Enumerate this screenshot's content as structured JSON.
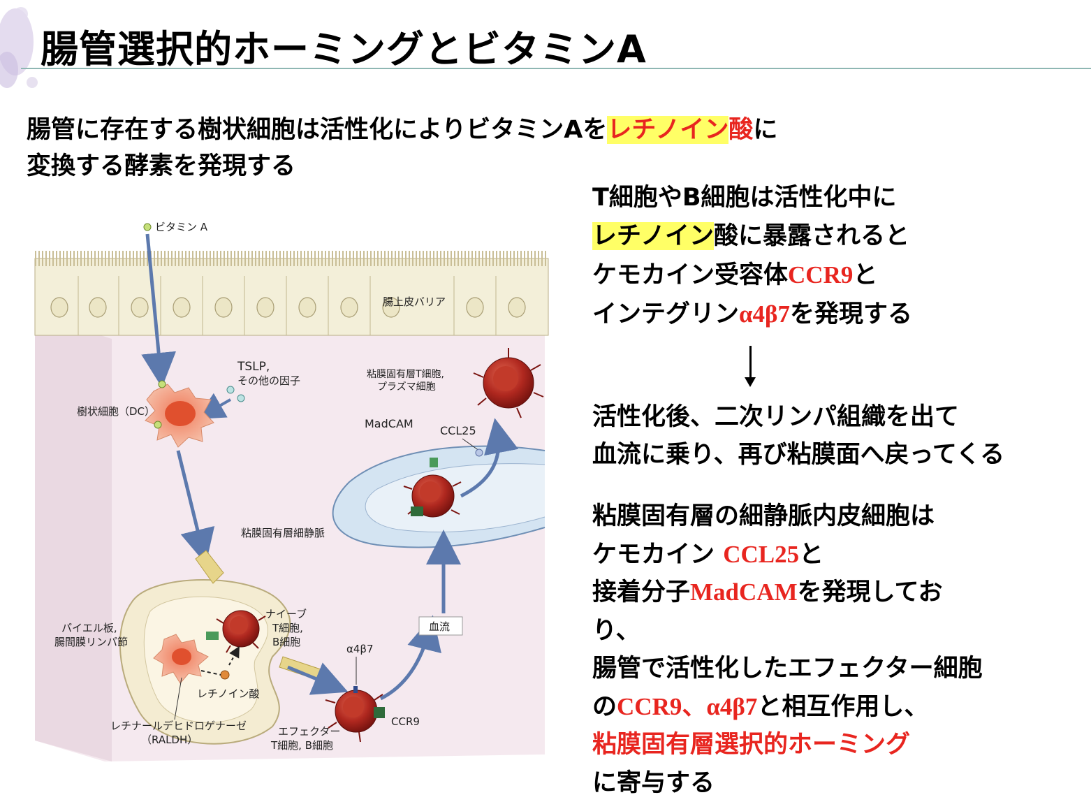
{
  "title": "腸管選択的ホーミングとビタミンA",
  "intro": {
    "line1_a": "腸管に存在する樹状細胞は活性化によりビタミンAを",
    "line1_hl": "レチノイン",
    "line1_red": "酸",
    "line1_b": "に",
    "line2": "変換する酵素を発現する"
  },
  "right_text": {
    "p1": {
      "l1": "T細胞やB細胞は活性化中に",
      "l2_hl": "レチノイン",
      "l2_rest": "酸に暴露されると",
      "l3_a": "ケモカイン受容体",
      "l3_red": "CCR9",
      "l3_b": "と",
      "l4_a": "インテグリン",
      "l4_red": "α4β7",
      "l4_b": "を発現する"
    },
    "p2": {
      "l1": "活性化後、二次リンパ組織を出て",
      "l2": "血流に乗り、再び粘膜面へ戻ってくる"
    },
    "p3": {
      "l1": "粘膜固有層の細静脈内皮細胞は",
      "l2_a": "ケモカイン ",
      "l2_red": "CCL25",
      "l2_b": "と",
      "l3_a": "接着分子",
      "l3_red": "MadCAM",
      "l3_b": "を発現してお",
      "l4": "り、",
      "l5": "腸管で活性化したエフェクター細胞",
      "l6_a": "の",
      "l6_red": "CCR9、α4β7",
      "l6_b": "と相互作用し、",
      "l7_red": "粘膜固有層選択的ホーミング",
      "l8": "に寄与する"
    }
  },
  "figure": {
    "vitamin_a": "ビタミン A",
    "epithelium": "腸上皮バリア",
    "tslp_1": "TSLP,",
    "tslp_2": "その他の因子",
    "dc": "樹状細胞（DC）",
    "lp_t_1": "粘膜固有層T細胞,",
    "lp_t_2": "プラズマ細胞",
    "madcam": "MadCAM",
    "ccl25": "CCL25",
    "venule": "粘膜固有層細静脈",
    "peyer_1": "パイエル板,",
    "peyer_2": "腸間膜リンパ節",
    "naive_1": "ナイーブ",
    "naive_2": "T細胞,",
    "naive_3": "B細胞",
    "blood": "血流",
    "alpha4b7": "α4β7",
    "retinoic": "レチノイン酸",
    "raldh_1": "レチナールデヒドロゲナーゼ",
    "raldh_2": "（RALDH）",
    "effector_1": "エフェクター",
    "effector_2": "T細胞, B細胞",
    "ccr9": "CCR9"
  },
  "colors": {
    "highlight": "#ffff66",
    "accent_red": "#e8251f",
    "title_rule": "#8fb7b3"
  }
}
